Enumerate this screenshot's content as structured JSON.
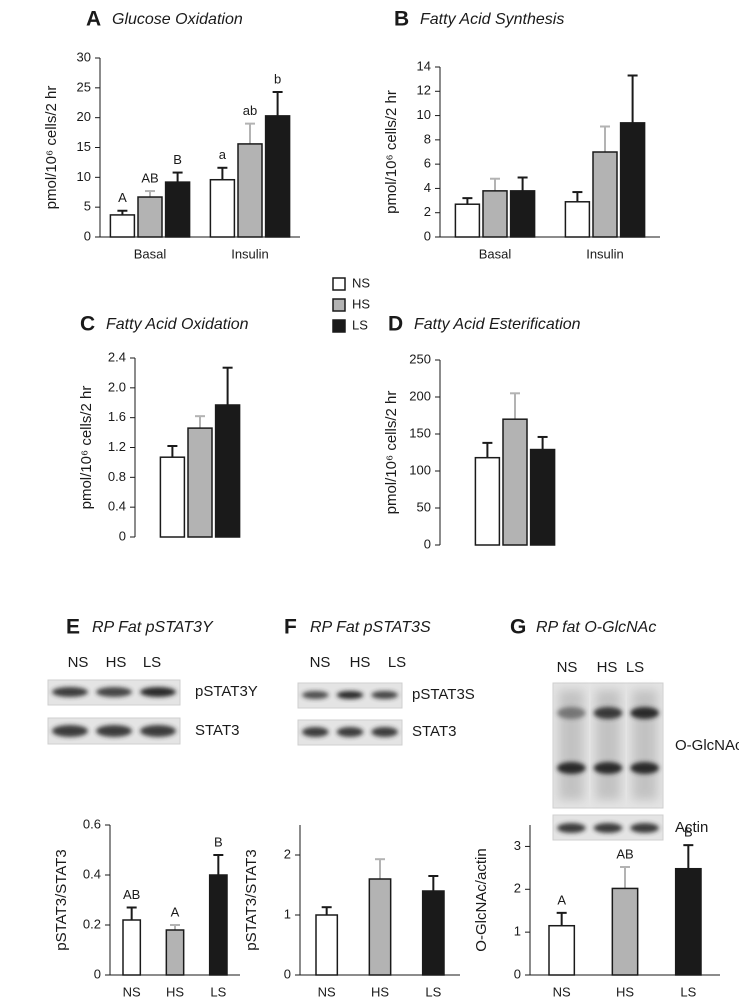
{
  "chart_data": [
    {
      "type": "bar",
      "panel": "A",
      "title": "Glucose Oxidation",
      "ylabel": "pmol/10⁶ cells/2 hr",
      "categories": [
        "Basal",
        "Insulin"
      ],
      "series": [
        {
          "name": "NS",
          "color": "#ffffff",
          "values": [
            3.7,
            9.6
          ],
          "errors": [
            0.7,
            2.0
          ],
          "annotations": [
            "A",
            "a"
          ]
        },
        {
          "name": "HS",
          "color": "#b3b3b3",
          "values": [
            6.7,
            15.6
          ],
          "errors": [
            1.0,
            3.4
          ],
          "annotations": [
            "AB",
            "ab"
          ]
        },
        {
          "name": "LS",
          "color": "#1a1a1a",
          "values": [
            9.2,
            20.3
          ],
          "errors": [
            1.6,
            4.0
          ],
          "annotations": [
            "B",
            "b"
          ]
        }
      ],
      "ylim": [
        0,
        30
      ],
      "yticks": [
        0,
        5,
        10,
        15,
        20,
        25,
        30
      ]
    },
    {
      "type": "bar",
      "panel": "B",
      "title": "Fatty Acid Synthesis",
      "ylabel": "pmol/10⁶ cells/2 hr",
      "categories": [
        "Basal",
        "Insulin"
      ],
      "series": [
        {
          "color": "#ffffff",
          "values": [
            2.7,
            2.9
          ],
          "errors": [
            0.5,
            0.8
          ]
        },
        {
          "color": "#b3b3b3",
          "values": [
            3.8,
            7.0
          ],
          "errors": [
            1.0,
            2.1
          ]
        },
        {
          "color": "#1a1a1a",
          "values": [
            3.8,
            9.4
          ],
          "errors": [
            1.1,
            3.9
          ]
        }
      ],
      "ylim": [
        0,
        14
      ],
      "yticks": [
        0,
        2,
        4,
        6,
        8,
        10,
        12,
        14
      ]
    },
    {
      "type": "bar",
      "panel": "C",
      "title": "Fatty Acid Oxidation",
      "ylabel": "pmol/10⁶ cells/2 hr",
      "categories": [
        null
      ],
      "series": [
        {
          "color": "#ffffff",
          "values": [
            1.07
          ],
          "errors": [
            0.15
          ]
        },
        {
          "color": "#b3b3b3",
          "values": [
            1.46
          ],
          "errors": [
            0.16
          ]
        },
        {
          "color": "#1a1a1a",
          "values": [
            1.77
          ],
          "errors": [
            0.5
          ]
        }
      ],
      "ylim": [
        0,
        2.4
      ],
      "yticks": [
        0,
        0.4,
        0.8,
        1.2,
        1.6,
        {
          "value": 2,
          "label": "2.0"
        },
        2.4
      ]
    },
    {
      "type": "bar",
      "panel": "D",
      "title": "Fatty Acid Esterification",
      "ylabel": "pmol/10⁶ cells/2 hr",
      "categories": [
        null
      ],
      "series": [
        {
          "color": "#ffffff",
          "values": [
            118
          ],
          "errors": [
            20
          ]
        },
        {
          "color": "#b3b3b3",
          "values": [
            170
          ],
          "errors": [
            35
          ]
        },
        {
          "color": "#1a1a1a",
          "values": [
            129
          ],
          "errors": [
            17
          ]
        }
      ],
      "ylim": [
        0,
        250
      ],
      "yticks": [
        0,
        50,
        100,
        150,
        200,
        250
      ]
    },
    {
      "type": "bar",
      "panel": "E",
      "title": "RP Fat pSTAT3Y",
      "ylabel": "pSTAT3/STAT3",
      "categories": [
        "NS",
        "HS",
        "LS"
      ],
      "series": [
        {
          "colors": [
            "#ffffff",
            "#b3b3b3",
            "#1a1a1a"
          ],
          "values": [
            0.22,
            0.18,
            0.4
          ],
          "errors": [
            0.05,
            0.02,
            0.08
          ],
          "annotations": [
            "AB",
            "A",
            "B"
          ]
        }
      ],
      "ylim": [
        0,
        0.6
      ],
      "yticks": [
        0,
        0.2,
        0.4,
        0.6
      ]
    },
    {
      "type": "bar",
      "panel": "F",
      "title": "RP Fat pSTAT3S",
      "ylabel": "pSTAT3/STAT3",
      "categories": [
        "NS",
        "HS",
        "LS"
      ],
      "series": [
        {
          "colors": [
            "#ffffff",
            "#b3b3b3",
            "#1a1a1a"
          ],
          "values": [
            1.0,
            1.6,
            1.4
          ],
          "errors": [
            0.13,
            0.33,
            0.25
          ]
        }
      ],
      "ylim": [
        0,
        2.5
      ],
      "yticks": [
        0,
        1,
        2
      ]
    },
    {
      "type": "bar",
      "panel": "G",
      "title": "RP fat O-GlcNAc",
      "ylabel": "O-GlcNAc/actin",
      "categories": [
        "NS",
        "HS",
        "LS"
      ],
      "series": [
        {
          "colors": [
            "#ffffff",
            "#b3b3b3",
            "#1a1a1a"
          ],
          "values": [
            1.15,
            2.02,
            2.48
          ],
          "errors": [
            0.3,
            0.5,
            0.55
          ],
          "annotations": [
            "A",
            "AB",
            "B"
          ]
        }
      ],
      "ylim": [
        0,
        3.5
      ],
      "yticks": [
        0,
        1,
        2,
        3
      ]
    }
  ],
  "blots": [
    {
      "lanes": [
        "NS",
        "HS",
        "LS"
      ],
      "bands": [
        "pSTAT3Y",
        "STAT3"
      ]
    },
    {
      "lanes": [
        "NS",
        "HS",
        "LS"
      ],
      "bands": [
        "pSTAT3S",
        "STAT3"
      ]
    },
    {
      "lanes": [
        "NS",
        "HS",
        "LS"
      ],
      "bands": [
        "O-GlcNAc",
        "Actin"
      ]
    }
  ]
}
